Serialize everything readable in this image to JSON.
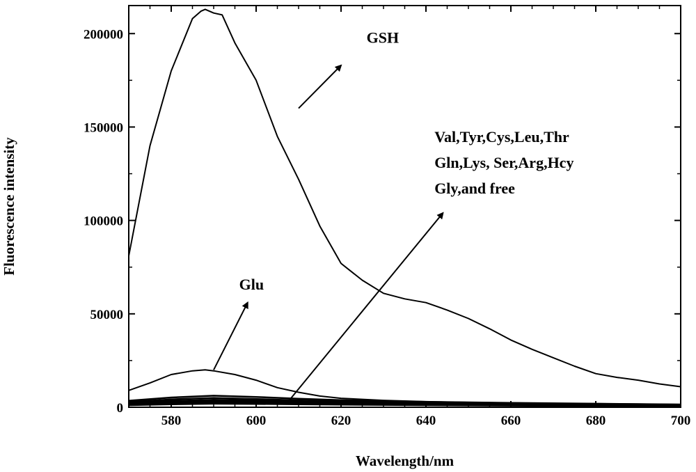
{
  "chart_data": {
    "type": "line",
    "xlabel": "Wavelength/nm",
    "ylabel": "Fluorescence intensity",
    "xlim": [
      570,
      700
    ],
    "ylim": [
      0,
      215000
    ],
    "xticks": [
      580,
      600,
      620,
      640,
      660,
      680,
      700
    ],
    "yticks": [
      0,
      50000,
      100000,
      150000,
      200000
    ],
    "tick_labels_x": [
      "580",
      "600",
      "620",
      "640",
      "660",
      "680",
      "700"
    ],
    "tick_labels_y": [
      "0",
      "50000",
      "100000",
      "150000",
      "200000"
    ],
    "grid": false,
    "series": [
      {
        "name": "GSH",
        "x": [
          570,
          575,
          580,
          585,
          587,
          588,
          590,
          592,
          595,
          600,
          605,
          610,
          615,
          620,
          625,
          630,
          635,
          640,
          645,
          650,
          655,
          660,
          665,
          670,
          675,
          680,
          685,
          690,
          695,
          700
        ],
        "values": [
          81000,
          140000,
          180000,
          208000,
          212000,
          213000,
          211000,
          210000,
          195000,
          175000,
          145000,
          122000,
          97000,
          77000,
          68000,
          61000,
          58000,
          56000,
          52000,
          47500,
          42000,
          36000,
          31000,
          26500,
          22000,
          18000,
          16000,
          14500,
          12500,
          11000
        ]
      },
      {
        "name": "Glu",
        "x": [
          570,
          575,
          580,
          585,
          588,
          590,
          595,
          600,
          605,
          610,
          615,
          620,
          630,
          640,
          650,
          660,
          670,
          680,
          690,
          700
        ],
        "values": [
          9000,
          13000,
          17500,
          19500,
          20000,
          19500,
          17500,
          14500,
          10500,
          8000,
          6000,
          4800,
          3700,
          3000,
          2600,
          2300,
          2000,
          1900,
          1700,
          1500
        ]
      },
      {
        "name": "",
        "x": [
          570,
          580,
          590,
          600,
          610,
          620,
          640,
          660,
          680,
          700
        ],
        "values": [
          3500,
          5200,
          6200,
          5500,
          4600,
          3800,
          2900,
          2300,
          1900,
          1500
        ]
      },
      {
        "name": "",
        "x": [
          570,
          580,
          590,
          600,
          610,
          620,
          640,
          660,
          680,
          700
        ],
        "values": [
          2800,
          4200,
          5000,
          4400,
          3700,
          3100,
          2400,
          1900,
          1600,
          1300
        ]
      },
      {
        "name": "",
        "x": [
          570,
          580,
          590,
          600,
          610,
          620,
          640,
          660,
          680,
          700
        ],
        "values": [
          2300,
          3400,
          4000,
          3600,
          3000,
          2600,
          2000,
          1600,
          1300,
          1100
        ]
      },
      {
        "name": "",
        "x": [
          570,
          580,
          590,
          600,
          610,
          620,
          640,
          660,
          680,
          700
        ],
        "values": [
          1900,
          2800,
          3300,
          3000,
          2600,
          2200,
          1700,
          1400,
          1100,
          900
        ]
      },
      {
        "name": "",
        "x": [
          570,
          580,
          590,
          600,
          610,
          620,
          640,
          660,
          680,
          700
        ],
        "values": [
          1500,
          2200,
          2600,
          2400,
          2100,
          1800,
          1400,
          1100,
          900,
          700
        ]
      },
      {
        "name": "",
        "x": [
          570,
          580,
          590,
          600,
          610,
          620,
          640,
          660,
          680,
          700
        ],
        "values": [
          1100,
          1600,
          1900,
          1800,
          1600,
          1400,
          1100,
          900,
          700,
          600
        ]
      }
    ],
    "annotations": [
      {
        "id": "gsh",
        "text": "GSH",
        "arrow_from": [
          610,
          160000
        ],
        "arrow_to": [
          620,
          183000
        ],
        "text_at": [
          626,
          195000
        ]
      },
      {
        "id": "glu",
        "text": "Glu",
        "arrow_from": [
          590,
          20000
        ],
        "arrow_to": [
          598,
          56000
        ],
        "text_at": [
          596,
          63000
        ]
      },
      {
        "id": "others",
        "text_lines": [
          "Val,Tyr,Cys,Leu,Thr",
          "Gln,Lys, Ser,Arg,Hcy",
          "Gly,and free"
        ],
        "arrow_from": [
          607,
          1500
        ],
        "arrow_to": [
          644,
          104000
        ],
        "text_at": [
          642,
          142000
        ]
      }
    ]
  }
}
